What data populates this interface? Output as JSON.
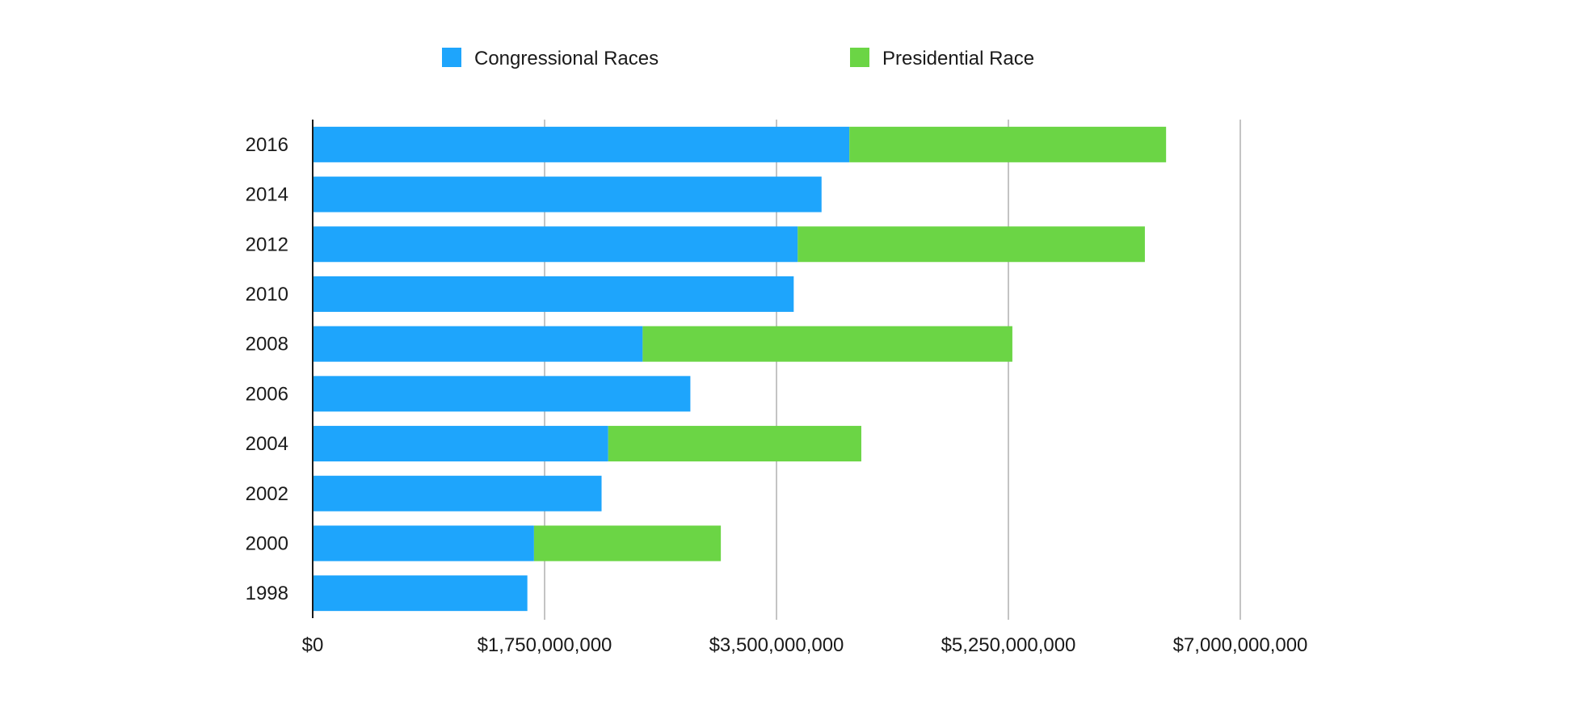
{
  "chart_data": {
    "type": "bar",
    "orientation": "horizontal",
    "stacked": true,
    "categories": [
      "2016",
      "2014",
      "2012",
      "2010",
      "2008",
      "2006",
      "2004",
      "2002",
      "2000",
      "1998"
    ],
    "series": [
      {
        "name": "Congressional Races",
        "color": "#1EA5FC",
        "values": [
          4050000000,
          3840000000,
          3660000000,
          3630000000,
          2490000000,
          2850000000,
          2230000000,
          2180000000,
          1670000000,
          1620000000
        ]
      },
      {
        "name": "Presidential Race",
        "color": "#6BD545",
        "values": [
          2390000000,
          0,
          2620000000,
          0,
          2790000000,
          0,
          1910000000,
          0,
          1410000000,
          0
        ]
      }
    ],
    "xlim": [
      0,
      7000000000
    ],
    "xticks": [
      0,
      1750000000,
      3500000000,
      5250000000,
      7000000000
    ],
    "xtick_labels": [
      "$0",
      "$1,750,000,000",
      "$3,500,000,000",
      "$5,250,000,000",
      "$7,000,000,000"
    ],
    "grid": "vertical",
    "legend_position": "top",
    "title": "",
    "xlabel": "",
    "ylabel": ""
  }
}
